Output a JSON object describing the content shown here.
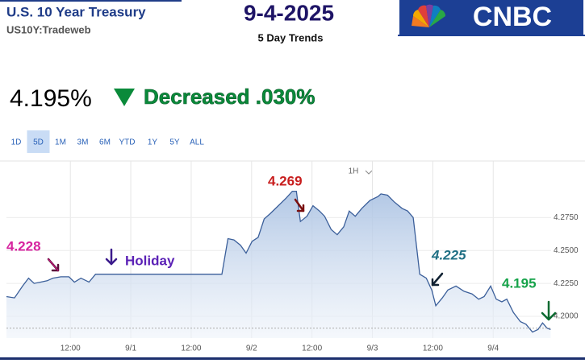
{
  "header": {
    "title": "U.S. 10 Year Treasury",
    "subtitle": "US10Y:Tradeweb",
    "date": "9-4-2025",
    "period": "5 Day Trends",
    "logo": "CNBC",
    "price": "4.195%",
    "change": "Decreased .030%",
    "range_buttons": [
      "1D",
      "5D",
      "1M",
      "3M",
      "6M",
      "YTD",
      "1Y",
      "5Y",
      "ALL"
    ],
    "selected": 1,
    "interval": "1H"
  },
  "chart_data": {
    "type": "line",
    "x": [
      -0.7,
      0.9,
      2.5,
      3.7,
      4.8,
      6.1,
      7.4,
      8.5,
      10.1,
      11.7,
      12.8,
      14.1,
      15.7,
      17.0,
      42.1,
      43.3,
      44.5,
      45.8,
      46.9,
      48.1,
      49.3,
      50.5,
      51.7,
      53.3,
      54.9,
      56.1,
      56.9,
      57.7,
      59.0,
      60.2,
      61.5,
      62.5,
      63.8,
      65.0,
      66.3,
      67.4,
      68.6,
      69.9,
      71.5,
      73.1,
      73.7,
      75.0,
      76.3,
      77.9,
      79.0,
      80.1,
      81.4,
      82.7,
      83.8,
      84.6,
      85.9,
      87.0,
      88.6,
      90.2,
      91.8,
      93.1,
      94.2,
      95.5,
      96.6,
      97.7,
      98.7,
      100.0,
      101.4,
      102.5,
      103.8,
      104.9,
      105.8,
      106.7,
      107.4
    ],
    "series": [
      {
        "name": "US10Y",
        "color": "#3b5f9a",
        "values": [
          4.215,
          4.214,
          4.223,
          4.229,
          4.225,
          4.226,
          4.227,
          4.229,
          4.23,
          4.23,
          4.226,
          4.229,
          4.226,
          4.232,
          4.232,
          4.259,
          4.258,
          4.254,
          4.248,
          4.257,
          4.26,
          4.274,
          4.278,
          4.284,
          4.29,
          4.295,
          4.295,
          4.272,
          4.276,
          4.284,
          4.28,
          4.276,
          4.266,
          4.262,
          4.268,
          4.28,
          4.276,
          4.282,
          4.288,
          4.291,
          4.293,
          4.292,
          4.287,
          4.282,
          4.28,
          4.275,
          4.232,
          4.229,
          4.22,
          4.208,
          4.214,
          4.22,
          4.223,
          4.219,
          4.217,
          4.213,
          4.215,
          4.223,
          4.213,
          4.211,
          4.213,
          4.203,
          4.196,
          4.194,
          4.188,
          4.19,
          4.195,
          4.191,
          4.19
        ]
      }
    ],
    "reference_line": 4.191,
    "xlim": [
      -0.7,
      107.5
    ],
    "ylim": [
      4.1835,
      4.318
    ],
    "xticks": [
      {
        "value": 12,
        "label": "12:00"
      },
      {
        "value": 24,
        "label": "9/1"
      },
      {
        "value": 36,
        "label": "12:00"
      },
      {
        "value": 48,
        "label": "9/2"
      },
      {
        "value": 60,
        "label": "12:00"
      },
      {
        "value": 72,
        "label": "9/3"
      },
      {
        "value": 84,
        "label": "12:00"
      },
      {
        "value": 96,
        "label": "9/4"
      }
    ],
    "yticks": [
      {
        "value": 4.2,
        "label": "4.2000"
      },
      {
        "value": 4.225,
        "label": "4.2250"
      },
      {
        "value": 4.25,
        "label": "4.2500"
      },
      {
        "value": 4.275,
        "label": "4.2750"
      }
    ],
    "grid": true,
    "annotations": [
      {
        "text": "4.228",
        "color": "#d6249f"
      },
      {
        "text": "Holiday",
        "color": "#5b21b6"
      },
      {
        "text": "4.269",
        "color": "#c81e1e"
      },
      {
        "text": "4.225",
        "color": "#1f6f84"
      },
      {
        "text": "4.195",
        "color": "#16a34a"
      }
    ]
  }
}
